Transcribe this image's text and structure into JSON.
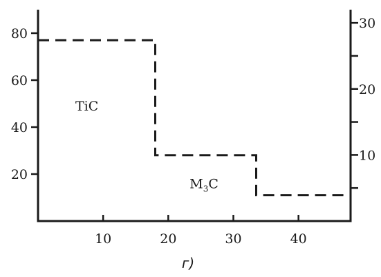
{
  "chart_data": {
    "type": "line",
    "x_ticks": [
      10,
      20,
      30,
      40
    ],
    "xlim": [
      0,
      48
    ],
    "y_left_ticks": [
      20,
      40,
      60,
      80
    ],
    "ylim_left": [
      0,
      90
    ],
    "y_right_ticks": [
      10,
      20,
      30
    ],
    "y_right_minor_ticks": [
      5,
      15,
      25
    ],
    "ylim_right": [
      0,
      32
    ],
    "series": [
      {
        "axis": "left",
        "style": "dashed",
        "points": [
          [
            0,
            77
          ],
          [
            18,
            77
          ],
          [
            18,
            28
          ],
          [
            33.5,
            28
          ],
          [
            33.5,
            11
          ],
          [
            48,
            11
          ]
        ]
      }
    ],
    "annotations": [
      {
        "label": "TiC",
        "x": 7.5,
        "y": 47
      },
      {
        "label_main": "M",
        "label_sub": "3",
        "label_tail": "C",
        "x": 25.5,
        "y": 14
      }
    ],
    "caption": "г)",
    "grid": false
  }
}
